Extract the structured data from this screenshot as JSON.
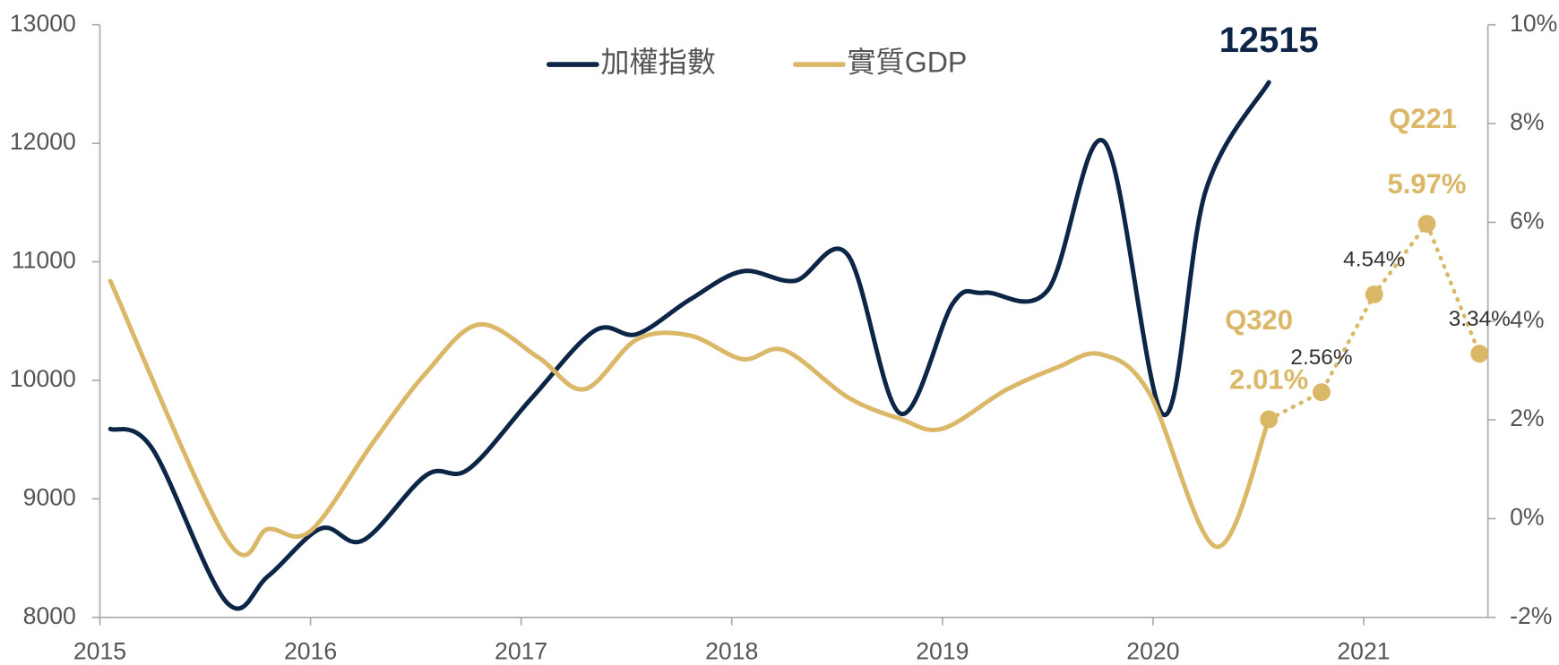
{
  "chart_data": {
    "type": "line",
    "xlim": [
      2015,
      2021.59
    ],
    "xticks": [
      2015,
      2016,
      2017,
      2018,
      2019,
      2020,
      2021
    ],
    "ylim": [
      8000,
      13000
    ],
    "yticks": [
      8000,
      9000,
      10000,
      11000,
      12000,
      13000
    ],
    "y2lim": [
      -2,
      10
    ],
    "y2ticks": [
      {
        "value": -2,
        "label": "-2%"
      },
      {
        "value": 0,
        "label": "0%"
      },
      {
        "value": 2,
        "label": "2%"
      },
      {
        "value": 4,
        "label": "4%"
      },
      {
        "value": 6,
        "label": "6%"
      },
      {
        "value": 8,
        "label": "8%"
      },
      {
        "value": 10,
        "label": "10%"
      }
    ],
    "grid": false,
    "legend": "top",
    "series": [
      {
        "name": "加權指數",
        "color": "#0d2547",
        "axis": "y",
        "x": [
          2015.05,
          2015.25,
          2015.6,
          2015.8,
          2016.05,
          2016.25,
          2016.55,
          2016.75,
          2017.05,
          2017.35,
          2017.55,
          2017.8,
          2018.05,
          2018.3,
          2018.55,
          2018.8,
          2019.05,
          2019.2,
          2019.5,
          2019.77,
          2020.05,
          2020.25,
          2020.55
        ],
        "values": [
          9590,
          9420,
          8130,
          8350,
          8750,
          8650,
          9200,
          9250,
          9850,
          10420,
          10390,
          10680,
          10920,
          10840,
          11060,
          9720,
          10650,
          10740,
          10760,
          12010,
          9710,
          11600,
          12515
        ]
      },
      {
        "name": "實質GDP",
        "color": "#dbb868",
        "axis": "y2",
        "x": [
          2015.05,
          2015.6,
          2015.8,
          2016.0,
          2016.3,
          2016.55,
          2016.8,
          2017.08,
          2017.3,
          2017.55,
          2017.8,
          2018.05,
          2018.25,
          2018.55,
          2018.8,
          2019.0,
          2019.3,
          2019.55,
          2019.75,
          2019.98,
          2020.3,
          2020.55
        ],
        "values": [
          4.81,
          -0.41,
          -0.21,
          -0.25,
          1.56,
          2.96,
          3.93,
          3.27,
          2.62,
          3.63,
          3.71,
          3.23,
          3.41,
          2.46,
          2.02,
          1.82,
          2.6,
          3.07,
          3.33,
          2.56,
          -0.57,
          2.01
        ]
      },
      {
        "color": "#dbb868",
        "axis": "y2",
        "line_style": "dotted",
        "markers": true,
        "x": [
          2020.55,
          2020.8,
          2021.05,
          2021.3,
          2021.55
        ],
        "values": [
          2.01,
          2.56,
          4.54,
          5.97,
          3.34
        ],
        "value_labels": [
          "2.01%",
          "2.56%",
          "4.54%",
          "5.97%",
          "3.34%"
        ]
      }
    ],
    "annotations": [
      "Q320",
      "Q221"
    ]
  }
}
